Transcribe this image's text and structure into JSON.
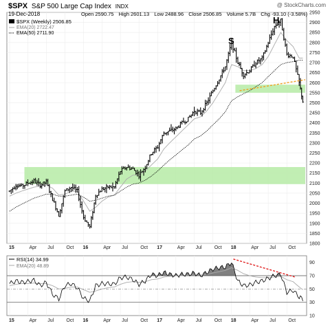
{
  "header": {
    "ticker": "$SPX",
    "description": "S&P 500 Large Cap Index",
    "exchange": "INDX",
    "watermark": "@ StockCharts.com",
    "date": "19-Dec-2018",
    "open_label": "Open",
    "open": "2590.75",
    "high_label": "High",
    "high": "2601.13",
    "low_label": "Low",
    "low": "2488.96",
    "close_label": "Close",
    "close": "2506.85",
    "volume_label": "Volume",
    "volume": "5.7B",
    "chg_label": "Chg",
    "chg": "-93.10 (-3.58%)",
    "legend": [
      {
        "label": "$SPX (Weekly) 2506.85",
        "style": "bars",
        "color": "#000000"
      },
      {
        "label": "EMA(20) 2722.47",
        "style": "solid",
        "color": "#aaaaaa"
      },
      {
        "label": "EMA(50) 2711.90",
        "style": "dotted",
        "color": "#000000"
      }
    ]
  },
  "annotations": {
    "s_label": "S",
    "h_label": "H",
    "support_color": "#b6eba6",
    "trend_color": "#f0a020",
    "rsi_trend_color": "#e02020"
  },
  "rsi": {
    "legend": [
      {
        "label": "RSI(14) 34.99",
        "color": "#000000"
      },
      {
        "label": "EMA(20) 48.89",
        "color": "#aaaaaa"
      }
    ]
  },
  "x_axis_labels": [
    "15",
    "Apr",
    "Jul",
    "Oct",
    "16",
    "Apr",
    "Jul",
    "Oct",
    "17",
    "Apr",
    "Jul",
    "Oct",
    "18",
    "Apr",
    "Jul",
    "Oct"
  ],
  "chart_data": [
    {
      "type": "line",
      "price_style": "ohlc-bars",
      "title": "$SPX S&P 500 Large Cap Index INDX",
      "x": [
        "2015-01-01",
        "2015-02-01",
        "2015-03-01",
        "2015-04-01",
        "2015-05-01",
        "2015-06-01",
        "2015-07-01",
        "2015-08-01",
        "2015-09-01",
        "2015-10-01",
        "2015-11-01",
        "2015-12-01",
        "2016-01-01",
        "2016-02-01",
        "2016-03-01",
        "2016-04-01",
        "2016-05-01",
        "2016-06-01",
        "2016-07-01",
        "2016-08-01",
        "2016-09-01",
        "2016-10-01",
        "2016-11-01",
        "2016-12-01",
        "2017-01-01",
        "2017-02-01",
        "2017-03-01",
        "2017-04-01",
        "2017-05-01",
        "2017-06-01",
        "2017-07-01",
        "2017-08-01",
        "2017-09-01",
        "2017-10-01",
        "2017-11-01",
        "2017-12-01",
        "2018-01-01",
        "2018-02-01",
        "2018-03-01",
        "2018-04-01",
        "2018-05-01",
        "2018-06-01",
        "2018-07-01",
        "2018-08-01",
        "2018-09-01",
        "2018-10-01",
        "2018-11-01",
        "2018-12-01",
        "2018-12-19"
      ],
      "series": [
        {
          "name": "$SPX (Weekly)",
          "values": [
            2060,
            2090,
            2085,
            2100,
            2110,
            2090,
            2105,
            2020,
            1940,
            2060,
            2080,
            2060,
            1930,
            1880,
            2040,
            2070,
            2080,
            2080,
            2160,
            2180,
            2170,
            2140,
            2180,
            2250,
            2280,
            2350,
            2360,
            2370,
            2400,
            2420,
            2460,
            2450,
            2500,
            2560,
            2620,
            2680,
            2800,
            2700,
            2640,
            2660,
            2700,
            2720,
            2800,
            2880,
            2910,
            2740,
            2730,
            2600,
            2506.85
          ]
        },
        {
          "name": "EMA(20)",
          "values": [
            2035,
            2050,
            2060,
            2070,
            2080,
            2085,
            2090,
            2075,
            2040,
            2045,
            2060,
            2060,
            2010,
            1960,
            1980,
            2010,
            2030,
            2040,
            2080,
            2120,
            2140,
            2140,
            2160,
            2190,
            2220,
            2270,
            2300,
            2330,
            2360,
            2390,
            2420,
            2430,
            2460,
            2500,
            2550,
            2600,
            2690,
            2680,
            2660,
            2660,
            2670,
            2690,
            2730,
            2790,
            2850,
            2810,
            2780,
            2722.47,
            2722.47
          ]
        },
        {
          "name": "EMA(50)",
          "values": [
            1960,
            1980,
            1995,
            2010,
            2025,
            2035,
            2045,
            2045,
            2035,
            2035,
            2040,
            2045,
            2030,
            2010,
            2015,
            2025,
            2035,
            2040,
            2060,
            2080,
            2095,
            2100,
            2115,
            2135,
            2160,
            2190,
            2215,
            2240,
            2265,
            2290,
            2320,
            2335,
            2360,
            2390,
            2420,
            2455,
            2510,
            2530,
            2545,
            2560,
            2580,
            2600,
            2630,
            2660,
            2690,
            2700,
            2705,
            2711.9,
            2711.9
          ]
        }
      ],
      "ylim": [
        1800,
        2950
      ],
      "yticks": [
        1800,
        1850,
        1900,
        1950,
        2000,
        2050,
        2100,
        2150,
        2200,
        2250,
        2300,
        2350,
        2400,
        2450,
        2500,
        2550,
        2600,
        2650,
        2700,
        2750,
        2800,
        2850,
        2900,
        2950
      ],
      "support_zones": [
        {
          "x_start": "2015-03-15",
          "x_end": "2018-12-31",
          "y_low": 2095,
          "y_high": 2180
        },
        {
          "x_start": "2018-01-20",
          "x_end": "2018-12-31",
          "y_low": 2550,
          "y_high": 2590
        }
      ],
      "neckline": {
        "x_start": "2018-02-10",
        "y_start": 2560,
        "x_end": "2018-12-31",
        "y_end": 2615
      },
      "grid": true
    },
    {
      "type": "line",
      "title": "RSI(14)",
      "x": [
        "2015-01-01",
        "2015-02-01",
        "2015-03-01",
        "2015-04-01",
        "2015-05-01",
        "2015-06-01",
        "2015-07-01",
        "2015-08-01",
        "2015-09-01",
        "2015-10-01",
        "2015-11-01",
        "2015-12-01",
        "2016-01-01",
        "2016-02-01",
        "2016-03-01",
        "2016-04-01",
        "2016-05-01",
        "2016-06-01",
        "2016-07-01",
        "2016-08-01",
        "2016-09-01",
        "2016-10-01",
        "2016-11-01",
        "2016-12-01",
        "2017-01-01",
        "2017-02-01",
        "2017-03-01",
        "2017-04-01",
        "2017-05-01",
        "2017-06-01",
        "2017-07-01",
        "2017-08-01",
        "2017-09-01",
        "2017-10-01",
        "2017-11-01",
        "2017-12-01",
        "2018-01-01",
        "2018-02-01",
        "2018-03-01",
        "2018-04-01",
        "2018-05-01",
        "2018-06-01",
        "2018-07-01",
        "2018-08-01",
        "2018-09-01",
        "2018-10-01",
        "2018-11-01",
        "2018-12-01",
        "2018-12-19"
      ],
      "series": [
        {
          "name": "RSI(14)",
          "values": [
            58,
            62,
            60,
            61,
            63,
            55,
            60,
            42,
            35,
            55,
            58,
            52,
            36,
            32,
            55,
            58,
            58,
            57,
            67,
            68,
            64,
            57,
            62,
            72,
            70,
            75,
            72,
            70,
            72,
            72,
            74,
            70,
            75,
            80,
            82,
            83,
            90,
            62,
            55,
            56,
            60,
            62,
            66,
            70,
            72,
            45,
            48,
            38,
            34.99
          ]
        },
        {
          "name": "EMA(20)",
          "values": [
            55,
            57,
            58,
            58,
            59,
            58,
            58,
            55,
            50,
            51,
            53,
            53,
            49,
            45,
            47,
            50,
            52,
            53,
            57,
            60,
            61,
            60,
            61,
            64,
            65,
            68,
            69,
            70,
            70,
            71,
            71,
            71,
            72,
            74,
            76,
            78,
            82,
            78,
            73,
            70,
            68,
            67,
            67,
            68,
            69,
            64,
            61,
            53,
            48.89
          ]
        }
      ],
      "ylim": [
        10,
        100
      ],
      "yticks": [
        10,
        30,
        50,
        70,
        90
      ],
      "reference_lines": [
        70,
        50,
        30
      ],
      "trendline": {
        "x_start": "2018-01-10",
        "y_start": 95,
        "x_end": "2018-11-10",
        "y_end": 68
      }
    }
  ]
}
